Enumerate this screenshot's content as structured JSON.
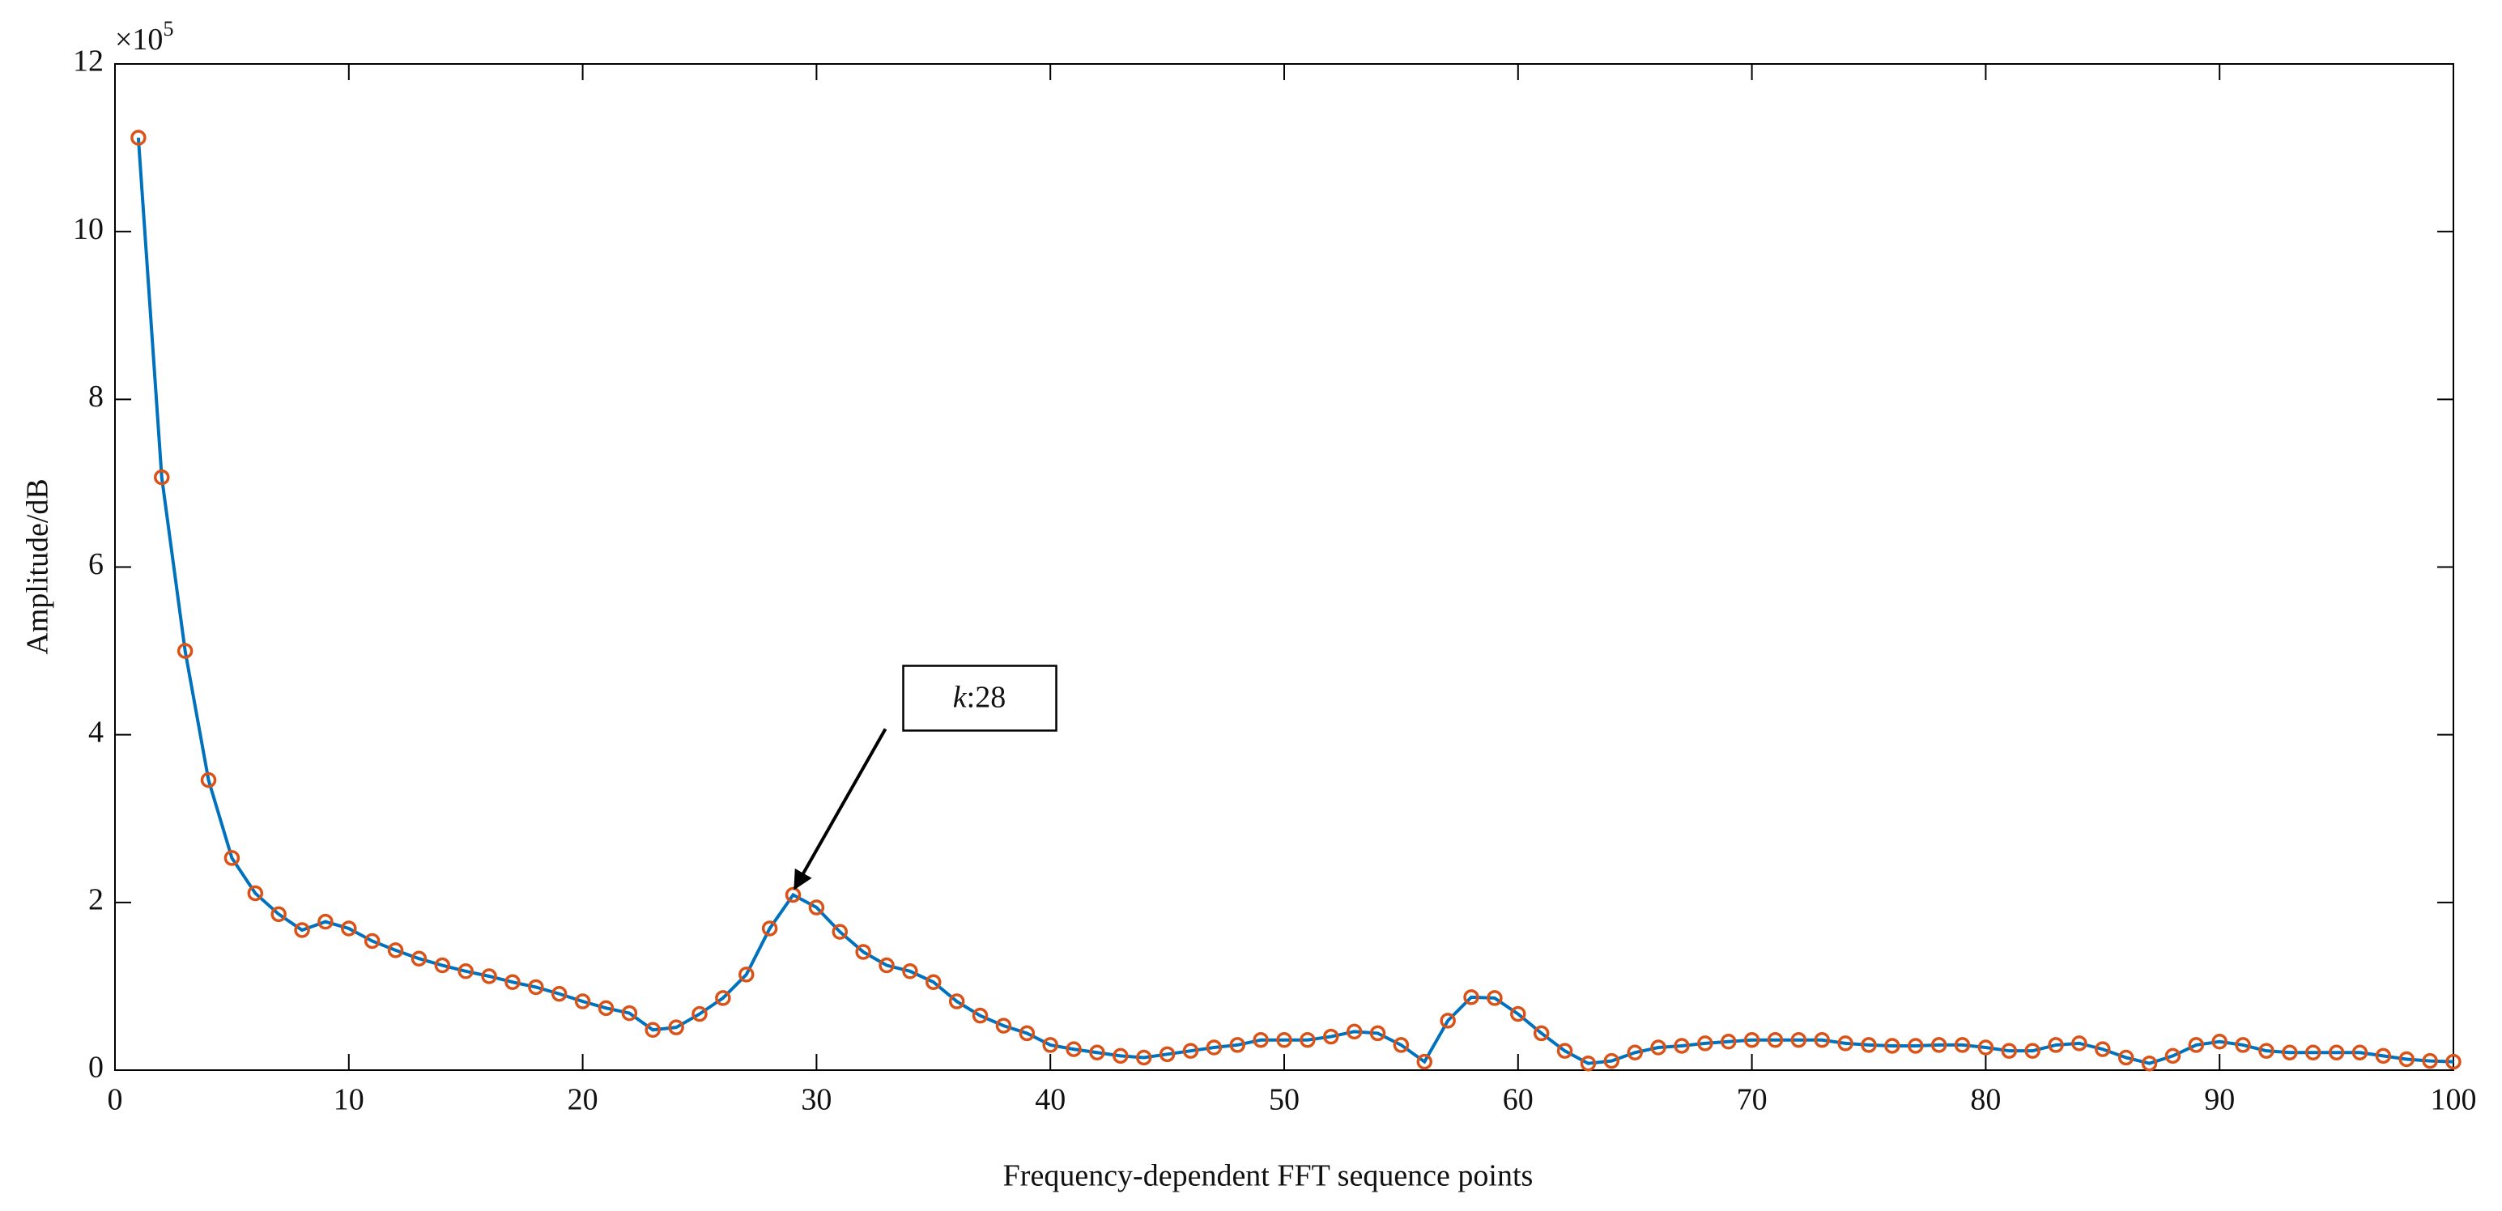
{
  "chart_data": {
    "type": "line",
    "xlabel": "Frequency-dependent FFT sequence points",
    "ylabel": "Amplitude/dB",
    "y_multiplier": {
      "base": "×10",
      "exponent": "5"
    },
    "annotation": {
      "italic": "k",
      "text": ":28",
      "x": 29,
      "y": 2.09
    },
    "x": [
      1,
      2,
      3,
      4,
      5,
      6,
      7,
      8,
      9,
      10,
      11,
      12,
      13,
      14,
      15,
      16,
      17,
      18,
      19,
      20,
      21,
      22,
      23,
      24,
      25,
      26,
      27,
      28,
      29,
      30,
      31,
      32,
      33,
      34,
      35,
      36,
      37,
      38,
      39,
      40,
      41,
      42,
      43,
      44,
      45,
      46,
      47,
      48,
      49,
      50,
      51,
      52,
      53,
      54,
      55,
      56,
      57,
      58,
      59,
      60,
      61,
      62,
      63,
      64,
      65,
      66,
      67,
      68,
      69,
      70,
      71,
      72,
      73,
      74,
      75,
      76,
      77,
      78,
      79,
      80,
      81,
      82,
      83,
      84,
      85,
      86,
      87,
      88,
      89,
      90,
      91,
      92,
      93,
      94,
      95,
      96,
      97,
      98,
      99,
      100
    ],
    "series": [
      {
        "color": "#0072bd",
        "marker_color": "#d95319",
        "values": [
          11.12,
          7.07,
          5.0,
          3.46,
          2.53,
          2.11,
          1.86,
          1.67,
          1.77,
          1.69,
          1.54,
          1.43,
          1.33,
          1.25,
          1.18,
          1.12,
          1.05,
          0.99,
          0.91,
          0.82,
          0.74,
          0.68,
          0.48,
          0.51,
          0.67,
          0.86,
          1.14,
          1.69,
          2.09,
          1.94,
          1.65,
          1.41,
          1.25,
          1.18,
          1.05,
          0.82,
          0.65,
          0.53,
          0.44,
          0.3,
          0.25,
          0.21,
          0.17,
          0.15,
          0.19,
          0.23,
          0.27,
          0.3,
          0.36,
          0.36,
          0.36,
          0.4,
          0.46,
          0.44,
          0.3,
          0.1,
          0.59,
          0.87,
          0.86,
          0.67,
          0.44,
          0.23,
          0.08,
          0.11,
          0.21,
          0.27,
          0.29,
          0.32,
          0.34,
          0.36,
          0.36,
          0.36,
          0.36,
          0.32,
          0.3,
          0.29,
          0.29,
          0.3,
          0.3,
          0.27,
          0.23,
          0.23,
          0.3,
          0.32,
          0.25,
          0.15,
          0.08,
          0.17,
          0.3,
          0.34,
          0.3,
          0.23,
          0.21,
          0.21,
          0.21,
          0.21,
          0.17,
          0.13,
          0.11,
          0.1
        ]
      }
    ],
    "xlim": [
      0,
      100
    ],
    "xticks": [
      0,
      10,
      20,
      30,
      40,
      50,
      60,
      70,
      80,
      90,
      100
    ],
    "ylim": [
      0,
      12
    ],
    "yticks": [
      0,
      2,
      4,
      6,
      8,
      10,
      12
    ]
  }
}
